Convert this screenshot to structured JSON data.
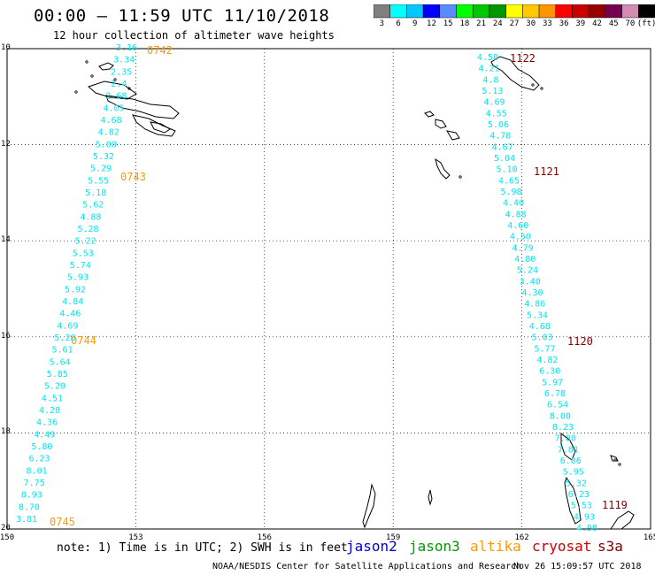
{
  "header": {
    "title": "00:00 – 11:59 UTC 11/10/2018",
    "subtitle": "12 hour collection of altimeter wave heights"
  },
  "color_scale": {
    "labels": [
      "3",
      "6",
      "9",
      "12",
      "15",
      "18",
      "21",
      "24",
      "27",
      "30",
      "33",
      "36",
      "39",
      "42",
      "45",
      "70",
      "(ft)"
    ],
    "colors": [
      "#7f7f7f",
      "#00ffff",
      "#00c8ff",
      "#0000ff",
      "#5a8cff",
      "#00ff00",
      "#00c800",
      "#009600",
      "#ffff00",
      "#ffc800",
      "#ff9600",
      "#ff0000",
      "#c80000",
      "#960000",
      "#780050",
      "#d28cb4",
      "#000000"
    ]
  },
  "map": {
    "x_ticks": [
      "150",
      "153",
      "156",
      "159",
      "162",
      "165"
    ],
    "y_ticks": [
      "10",
      "12",
      "14",
      "16",
      "18",
      "20"
    ],
    "track_color": "#00e6f0",
    "time_label_orange": "#ff9900",
    "time_label_darkred": "#800000",
    "track_west": {
      "values": [
        "3.16",
        "3.34",
        "2.35",
        "2.4",
        "2.68",
        "4.05",
        "4.68",
        "4.82",
        "5.00",
        "5.32",
        "5.29",
        "5.55",
        "5.18",
        "5.62",
        "4.88",
        "5.28",
        "5.22",
        "5.53",
        "5.74",
        "5.93",
        "5.92",
        "4.84",
        "4.46",
        "4.69",
        "5.28",
        "5.61",
        "5.64",
        "5.85",
        "5.20",
        "4.51",
        "4.28",
        "4.36",
        "4.49",
        "5.80",
        "6.23",
        "8.01",
        "7.75",
        "8.93",
        "8.70",
        "3.81"
      ],
      "time_labels": [
        "0742",
        "0743",
        "0744",
        "0745"
      ]
    },
    "track_east": {
      "values": [
        "4.50",
        "4.21",
        "4.8",
        "5.13",
        "4.69",
        "4.55",
        "5.06",
        "4.78",
        "4.67",
        "5.04",
        "5.10",
        "4.65",
        "5.98",
        "4.40",
        "4.88",
        "4.60",
        "4.50",
        "4.79",
        "4.80",
        "5.24",
        "3.40",
        "4.30",
        "4.86",
        "5.34",
        "4.68",
        "5.03",
        "5.77",
        "4.82",
        "6.30",
        "5.97",
        "6.78",
        "6.54",
        "8.00",
        "8.23",
        "7.80",
        "7.81",
        "6.06",
        "5.95",
        "5.32",
        "6.23",
        "5.53",
        "4.93",
        "4.98"
      ],
      "time_labels": [
        "1122",
        "1121",
        "1120",
        "1119"
      ]
    }
  },
  "footer": {
    "note": "note: 1) Time is in UTC; 2) SWH is in feet",
    "satellites": [
      {
        "name": "jason2",
        "color": "#0000cc"
      },
      {
        "name": "jason3",
        "color": "#009900"
      },
      {
        "name": "altika",
        "color": "#ff9900"
      },
      {
        "name": "cryosat",
        "color": "#cc0000"
      },
      {
        "name": "s3a",
        "color": "#800000"
      }
    ],
    "credit": "NOAA/NESDIS Center for Satellite Applications and Research",
    "timestamp": "Nov 26 15:09:57 UTC 2018"
  }
}
